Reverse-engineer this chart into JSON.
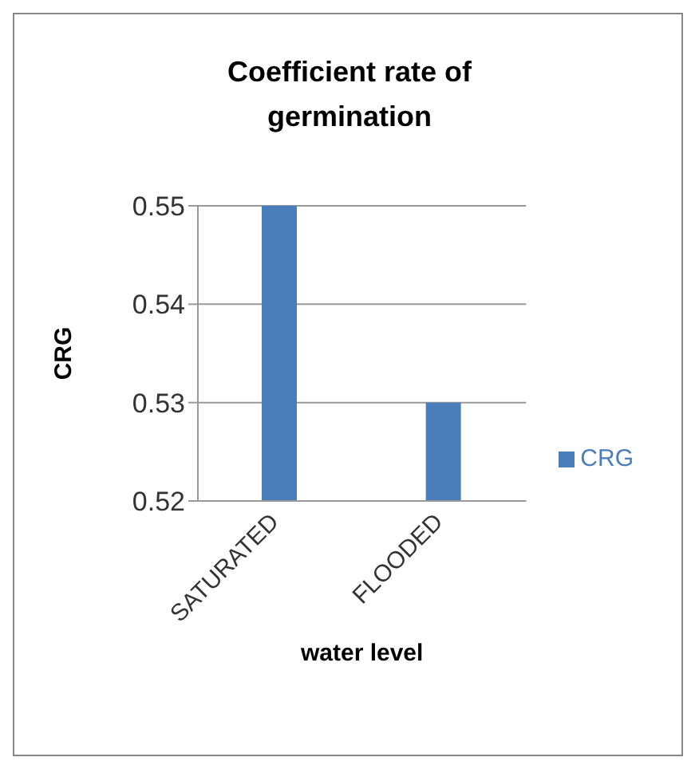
{
  "chart_data": {
    "type": "bar",
    "title": "Coefficient rate of germination",
    "xlabel": "water level",
    "ylabel": "CRG",
    "categories": [
      "SATURATED",
      "FLOODED"
    ],
    "series": [
      {
        "name": "CRG",
        "color": "#4a7ebb",
        "values": [
          0.55,
          0.53
        ]
      }
    ],
    "ylim": [
      0.52,
      0.55
    ],
    "yticks": [
      0.52,
      0.53,
      0.54,
      0.55
    ],
    "grid": "y",
    "legend": "right"
  }
}
